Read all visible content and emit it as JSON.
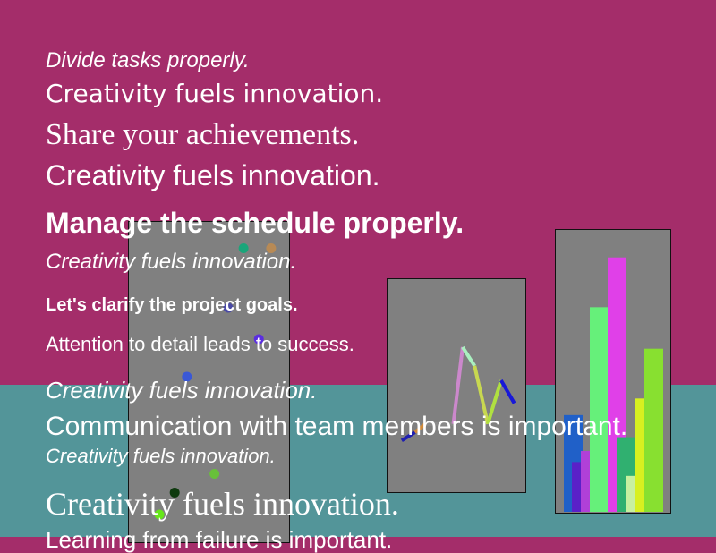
{
  "texts": [
    "Divide tasks properly.",
    "Creativity fuels innovation.",
    "Share your achievements.",
    "Creativity fuels innovation.",
    "Manage the schedule properly.",
    "Creativity fuels innovation.",
    "Let's clarify the project goals.",
    "Attention to detail leads to success.",
    "Creativity fuels innovation.",
    "Communication with team members is important.",
    "Creativity fuels innovation.",
    "Creativity fuels innovation.",
    "Learning from failure is important."
  ],
  "colors": {
    "background": "#a42d6a",
    "band": "#539599",
    "panel": "#808080",
    "text": "#ffffff"
  },
  "chart_data": [
    {
      "type": "scatter",
      "xlim": [
        0,
        10
      ],
      "ylim": [
        0,
        10
      ],
      "points": [
        {
          "x": 7.2,
          "y": 9.3,
          "color": "#1aa57a"
        },
        {
          "x": 9.0,
          "y": 9.3,
          "color": "#b88a55"
        },
        {
          "x": 6.2,
          "y": 7.4,
          "color": "#4a4aa5"
        },
        {
          "x": 8.2,
          "y": 6.4,
          "color": "#5b2ee0"
        },
        {
          "x": 3.5,
          "y": 5.2,
          "color": "#3a58d6"
        },
        {
          "x": 5.3,
          "y": 2.1,
          "color": "#68c03a"
        },
        {
          "x": 2.7,
          "y": 1.5,
          "color": "#0e3a0e"
        },
        {
          "x": 1.7,
          "y": 0.8,
          "color": "#66e61a"
        }
      ]
    },
    {
      "type": "line",
      "xlim": [
        0,
        10
      ],
      "ylim": [
        0,
        10
      ],
      "segments": [
        {
          "x1": 0.8,
          "y1": 2.4,
          "x2": 1.8,
          "y2": 2.8,
          "color": "#2020b0"
        },
        {
          "x1": 1.8,
          "y1": 2.8,
          "x2": 2.6,
          "y2": 3.2,
          "color": "#d08a3a"
        },
        {
          "x1": 2.6,
          "y1": 3.2,
          "x2": 4.7,
          "y2": 3.2,
          "color": "#8a8a8a"
        },
        {
          "x1": 4.7,
          "y1": 3.2,
          "x2": 5.4,
          "y2": 6.9,
          "color": "#cc88cc"
        },
        {
          "x1": 5.4,
          "y1": 6.9,
          "x2": 6.3,
          "y2": 6.0,
          "color": "#aaf0c0"
        },
        {
          "x1": 6.3,
          "y1": 6.0,
          "x2": 7.3,
          "y2": 3.2,
          "color": "#c8d850"
        },
        {
          "x1": 7.3,
          "y1": 3.2,
          "x2": 8.3,
          "y2": 5.3,
          "color": "#b0e040"
        },
        {
          "x1": 8.3,
          "y1": 5.3,
          "x2": 9.3,
          "y2": 4.2,
          "color": "#1818d8"
        }
      ]
    },
    {
      "type": "bar",
      "ylim": [
        0,
        100
      ],
      "bars": [
        {
          "value": 35,
          "color": "#2060c8"
        },
        {
          "value": 18,
          "color": "#5a20c8"
        },
        {
          "value": 22,
          "color": "#b040d8"
        },
        {
          "value": 74,
          "color": "#66f07a"
        },
        {
          "value": 92,
          "color": "#e040e8"
        },
        {
          "value": 27,
          "color": "#30b070"
        },
        {
          "value": 41,
          "color": "#d8f020"
        },
        {
          "value": 59,
          "color": "#88e030"
        },
        {
          "value": 13,
          "color": "#c8f0a0"
        }
      ],
      "bar_order_note": ""
    }
  ]
}
